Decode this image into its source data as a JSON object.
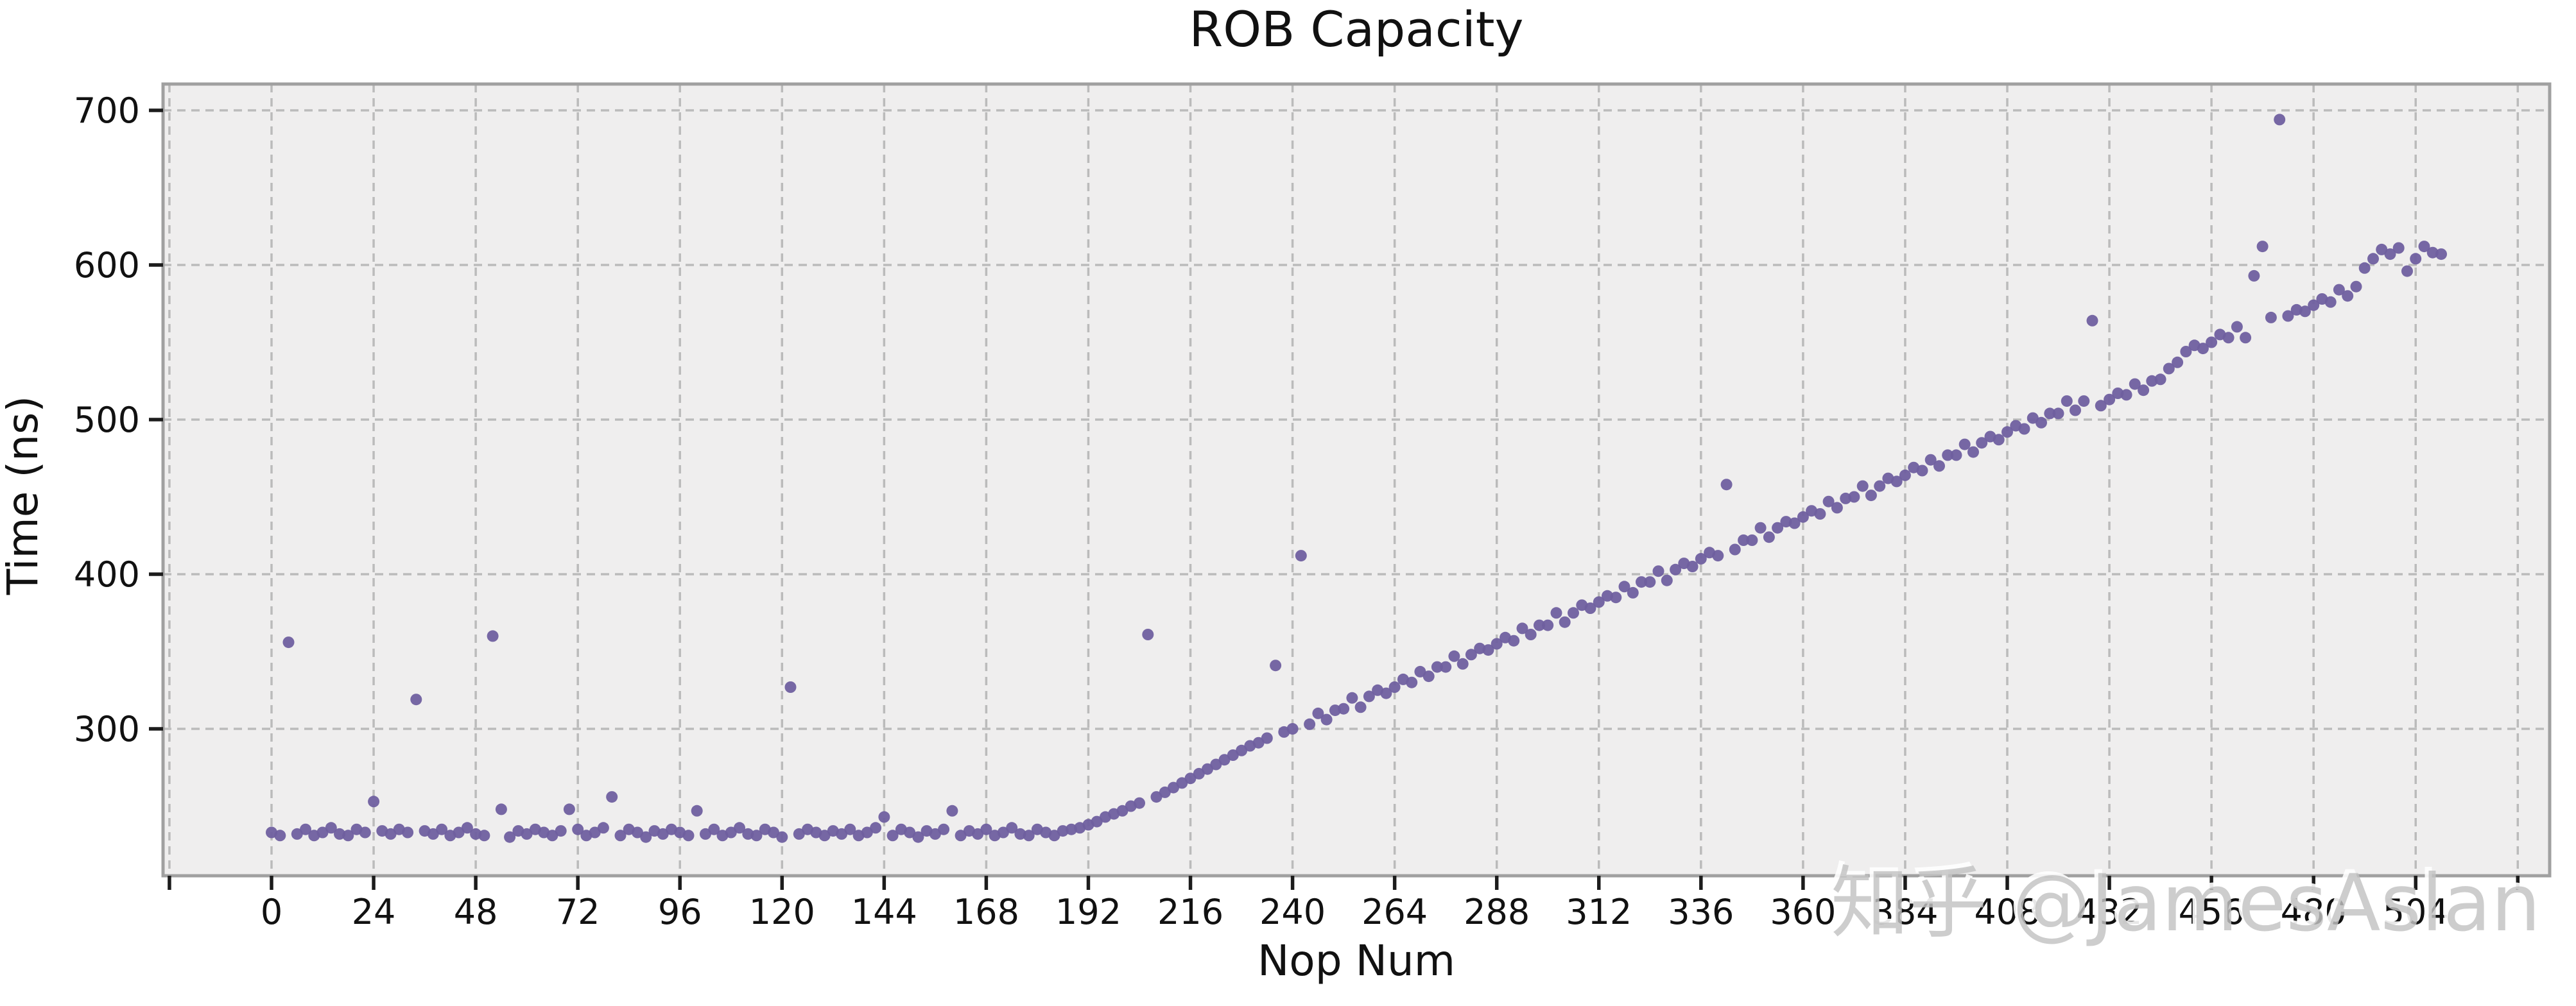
{
  "watermark": {
    "text": "知乎 @JamesAslan"
  },
  "colors": {
    "figure_bg": "#ffffff",
    "axes_bg": "#efeeee",
    "grid": "#bbbbbb",
    "spine": "#a0a0a0",
    "tick": "#1c1c1c",
    "text": "#111111",
    "marker": "#6f5f9f",
    "watermark": "#c3c3c3"
  },
  "chart_data": {
    "type": "scatter",
    "title": "ROB Capacity",
    "xlabel": "Nop Num",
    "ylabel": "Time (ns)",
    "xlim": [
      -25.5,
      535.5
    ],
    "ylim": [
      205,
      717
    ],
    "x_ticks": [
      0,
      24,
      48,
      72,
      96,
      120,
      144,
      168,
      192,
      216,
      240,
      264,
      288,
      312,
      336,
      360,
      384,
      408,
      432,
      456,
      480,
      504
    ],
    "x_ticks_unlabeled": [
      -24,
      528
    ],
    "y_ticks": [
      300,
      400,
      500,
      600,
      700
    ],
    "grid": "dashed",
    "legend": null,
    "marker": "circle",
    "marker_radius": 9,
    "series": [
      {
        "name": "time_ns",
        "points": [
          [
            0,
            233
          ],
          [
            2,
            231
          ],
          [
            4,
            356
          ],
          [
            6,
            232
          ],
          [
            8,
            235
          ],
          [
            10,
            231
          ],
          [
            12,
            233
          ],
          [
            14,
            236
          ],
          [
            16,
            232
          ],
          [
            18,
            231
          ],
          [
            20,
            235
          ],
          [
            22,
            233
          ],
          [
            24,
            253
          ],
          [
            26,
            234
          ],
          [
            28,
            232
          ],
          [
            30,
            235
          ],
          [
            32,
            233
          ],
          [
            34,
            319
          ],
          [
            36,
            234
          ],
          [
            38,
            232
          ],
          [
            40,
            235
          ],
          [
            42,
            231
          ],
          [
            44,
            233
          ],
          [
            46,
            236
          ],
          [
            48,
            232
          ],
          [
            50,
            231
          ],
          [
            52,
            360
          ],
          [
            54,
            248
          ],
          [
            56,
            230
          ],
          [
            58,
            234
          ],
          [
            60,
            232
          ],
          [
            62,
            235
          ],
          [
            64,
            233
          ],
          [
            66,
            231
          ],
          [
            68,
            234
          ],
          [
            70,
            248
          ],
          [
            72,
            235
          ],
          [
            74,
            231
          ],
          [
            76,
            233
          ],
          [
            78,
            236
          ],
          [
            80,
            256
          ],
          [
            82,
            231
          ],
          [
            84,
            235
          ],
          [
            86,
            233
          ],
          [
            88,
            230
          ],
          [
            90,
            234
          ],
          [
            92,
            232
          ],
          [
            94,
            235
          ],
          [
            96,
            233
          ],
          [
            98,
            231
          ],
          [
            100,
            247
          ],
          [
            102,
            232
          ],
          [
            104,
            235
          ],
          [
            106,
            231
          ],
          [
            108,
            233
          ],
          [
            110,
            236
          ],
          [
            112,
            232
          ],
          [
            114,
            231
          ],
          [
            116,
            235
          ],
          [
            118,
            233
          ],
          [
            120,
            230
          ],
          [
            122,
            327
          ],
          [
            124,
            232
          ],
          [
            126,
            235
          ],
          [
            128,
            233
          ],
          [
            130,
            231
          ],
          [
            132,
            234
          ],
          [
            134,
            232
          ],
          [
            136,
            235
          ],
          [
            138,
            231
          ],
          [
            140,
            233
          ],
          [
            142,
            236
          ],
          [
            144,
            243
          ],
          [
            146,
            231
          ],
          [
            148,
            235
          ],
          [
            150,
            233
          ],
          [
            152,
            230
          ],
          [
            154,
            234
          ],
          [
            156,
            232
          ],
          [
            158,
            235
          ],
          [
            160,
            247
          ],
          [
            162,
            231
          ],
          [
            164,
            234
          ],
          [
            166,
            232
          ],
          [
            168,
            235
          ],
          [
            170,
            231
          ],
          [
            172,
            233
          ],
          [
            174,
            236
          ],
          [
            176,
            232
          ],
          [
            178,
            231
          ],
          [
            180,
            235
          ],
          [
            182,
            233
          ],
          [
            184,
            231
          ],
          [
            186,
            234
          ],
          [
            188,
            235
          ],
          [
            190,
            236
          ],
          [
            192,
            238
          ],
          [
            194,
            240
          ],
          [
            196,
            243
          ],
          [
            198,
            245
          ],
          [
            200,
            247
          ],
          [
            202,
            250
          ],
          [
            204,
            252
          ],
          [
            206,
            361
          ],
          [
            208,
            256
          ],
          [
            210,
            259
          ],
          [
            212,
            262
          ],
          [
            214,
            265
          ],
          [
            216,
            268
          ],
          [
            218,
            271
          ],
          [
            220,
            274
          ],
          [
            222,
            277
          ],
          [
            224,
            280
          ],
          [
            226,
            283
          ],
          [
            228,
            286
          ],
          [
            230,
            289
          ],
          [
            232,
            291
          ],
          [
            234,
            294
          ],
          [
            236,
            341
          ],
          [
            238,
            298
          ],
          [
            240,
            300
          ],
          [
            242,
            412
          ],
          [
            244,
            303
          ],
          [
            246,
            310
          ],
          [
            248,
            306
          ],
          [
            250,
            312
          ],
          [
            252,
            313
          ],
          [
            254,
            320
          ],
          [
            256,
            314
          ],
          [
            258,
            321
          ],
          [
            260,
            325
          ],
          [
            262,
            323
          ],
          [
            264,
            327
          ],
          [
            266,
            332
          ],
          [
            268,
            330
          ],
          [
            270,
            337
          ],
          [
            272,
            334
          ],
          [
            274,
            340
          ],
          [
            276,
            340
          ],
          [
            278,
            347
          ],
          [
            280,
            342
          ],
          [
            282,
            348
          ],
          [
            284,
            352
          ],
          [
            286,
            351
          ],
          [
            288,
            355
          ],
          [
            290,
            359
          ],
          [
            292,
            357
          ],
          [
            294,
            365
          ],
          [
            296,
            361
          ],
          [
            298,
            367
          ],
          [
            300,
            367
          ],
          [
            302,
            375
          ],
          [
            304,
            369
          ],
          [
            306,
            375
          ],
          [
            308,
            380
          ],
          [
            310,
            378
          ],
          [
            312,
            382
          ],
          [
            314,
            386
          ],
          [
            316,
            385
          ],
          [
            318,
            392
          ],
          [
            320,
            388
          ],
          [
            322,
            395
          ],
          [
            324,
            395
          ],
          [
            326,
            402
          ],
          [
            328,
            396
          ],
          [
            330,
            403
          ],
          [
            332,
            407
          ],
          [
            334,
            405
          ],
          [
            336,
            410
          ],
          [
            338,
            414
          ],
          [
            340,
            412
          ],
          [
            342,
            458
          ],
          [
            344,
            416
          ],
          [
            346,
            422
          ],
          [
            348,
            422
          ],
          [
            350,
            430
          ],
          [
            352,
            424
          ],
          [
            354,
            430
          ],
          [
            356,
            434
          ],
          [
            358,
            433
          ],
          [
            360,
            437
          ],
          [
            362,
            441
          ],
          [
            364,
            439
          ],
          [
            366,
            447
          ],
          [
            368,
            443
          ],
          [
            370,
            449
          ],
          [
            372,
            450
          ],
          [
            374,
            457
          ],
          [
            376,
            451
          ],
          [
            378,
            457
          ],
          [
            380,
            462
          ],
          [
            382,
            460
          ],
          [
            384,
            464
          ],
          [
            386,
            469
          ],
          [
            388,
            467
          ],
          [
            390,
            474
          ],
          [
            392,
            470
          ],
          [
            394,
            477
          ],
          [
            396,
            477
          ],
          [
            398,
            484
          ],
          [
            400,
            479
          ],
          [
            402,
            485
          ],
          [
            404,
            489
          ],
          [
            406,
            487
          ],
          [
            408,
            492
          ],
          [
            410,
            496
          ],
          [
            412,
            494
          ],
          [
            414,
            501
          ],
          [
            416,
            498
          ],
          [
            418,
            504
          ],
          [
            420,
            504
          ],
          [
            422,
            512
          ],
          [
            424,
            506
          ],
          [
            426,
            512
          ],
          [
            428,
            564
          ],
          [
            430,
            509
          ],
          [
            432,
            513
          ],
          [
            434,
            517
          ],
          [
            436,
            516
          ],
          [
            438,
            523
          ],
          [
            440,
            519
          ],
          [
            442,
            525
          ],
          [
            444,
            526
          ],
          [
            446,
            533
          ],
          [
            448,
            537
          ],
          [
            450,
            544
          ],
          [
            452,
            548
          ],
          [
            454,
            546
          ],
          [
            456,
            550
          ],
          [
            458,
            555
          ],
          [
            460,
            553
          ],
          [
            462,
            560
          ],
          [
            464,
            553
          ],
          [
            466,
            593
          ],
          [
            468,
            612
          ],
          [
            470,
            566
          ],
          [
            472,
            694
          ],
          [
            474,
            567
          ],
          [
            476,
            571
          ],
          [
            478,
            570
          ],
          [
            480,
            574
          ],
          [
            482,
            578
          ],
          [
            484,
            576
          ],
          [
            486,
            584
          ],
          [
            488,
            580
          ],
          [
            490,
            586
          ],
          [
            492,
            598
          ],
          [
            494,
            604
          ],
          [
            496,
            610
          ],
          [
            498,
            607
          ],
          [
            500,
            611
          ],
          [
            502,
            596
          ],
          [
            504,
            604
          ],
          [
            506,
            612
          ],
          [
            508,
            608
          ],
          [
            510,
            607
          ]
        ]
      }
    ]
  }
}
